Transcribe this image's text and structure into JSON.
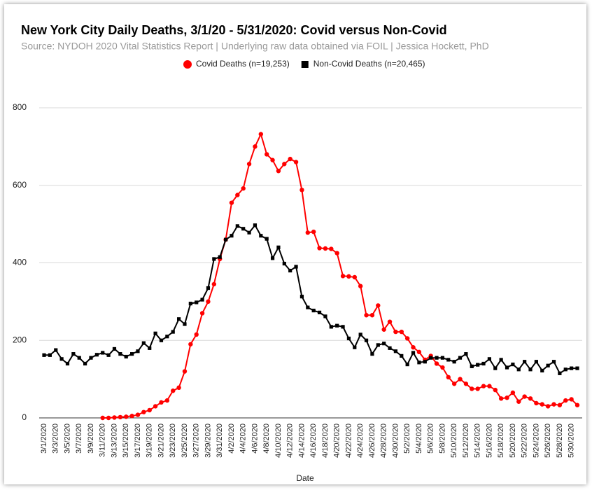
{
  "chart_data": {
    "type": "line",
    "title": "New York City Daily Deaths, 3/1/20 - 5/31/2020: Covid versus Non-Covid",
    "subtitle": "Source: NYDOH 2020 Vital Statistics Report | Underlying raw data obtained via FOIL | Jessica Hockett, PhD",
    "x_label": "Date",
    "categories": [
      "3/1/2020",
      null,
      "3/3/2020",
      null,
      "3/5/2020",
      null,
      "3/7/2020",
      null,
      "3/9/2020",
      null,
      "3/11/2020",
      null,
      "3/13/2020",
      null,
      "3/15/2020",
      null,
      "3/17/2020",
      null,
      "3/19/2020",
      null,
      "3/21/2020",
      null,
      "3/23/2020",
      null,
      "3/25/2020",
      null,
      "3/27/2020",
      null,
      "3/29/2020",
      null,
      "3/31/2020",
      null,
      "4/2/2020",
      null,
      "4/4/2020",
      null,
      "4/6/2020",
      null,
      "4/8/2020",
      null,
      "4/10/2020",
      null,
      "4/12/2020",
      null,
      "4/14/2020",
      null,
      "4/16/2020",
      null,
      "4/18/2020",
      null,
      "4/20/2020",
      null,
      "4/22/2020",
      null,
      "4/24/2020",
      null,
      "4/26/2020",
      null,
      "4/28/2020",
      null,
      "4/30/2020",
      null,
      "5/2/2020",
      null,
      "5/4/2020",
      null,
      "5/6/2020",
      null,
      "5/8/2020",
      null,
      "5/10/2020",
      null,
      "5/12/2020",
      null,
      "5/14/2020",
      null,
      "5/16/2020",
      null,
      "5/18/2020",
      null,
      "5/20/2020",
      null,
      "5/22/2020",
      null,
      "5/24/2020",
      null,
      "5/26/2020",
      null,
      "5/28/2020",
      null,
      "5/30/2020",
      null
    ],
    "series": [
      {
        "name": "Covid Deaths (n=19,253)",
        "color": "#ff0000",
        "marker": "circle",
        "values": [
          null,
          null,
          null,
          null,
          null,
          null,
          null,
          null,
          null,
          null,
          0,
          0,
          1,
          2,
          3,
          5,
          8,
          15,
          20,
          30,
          40,
          45,
          70,
          78,
          120,
          190,
          215,
          270,
          300,
          345,
          410,
          460,
          555,
          575,
          592,
          655,
          700,
          732,
          680,
          665,
          637,
          655,
          668,
          660,
          588,
          478,
          480,
          438,
          437,
          436,
          425,
          366,
          365,
          363,
          340,
          265,
          265,
          290,
          228,
          248,
          222,
          222,
          205,
          182,
          170,
          150,
          160,
          140,
          130,
          105,
          88,
          100,
          88,
          75,
          75,
          82,
          82,
          72,
          50,
          52,
          65,
          42,
          55,
          50,
          38,
          35,
          30,
          35,
          33,
          45,
          48,
          33
        ]
      },
      {
        "name": "Non-Covid Deaths (n=20,465)",
        "color": "#000000",
        "marker": "square",
        "values": [
          162,
          162,
          175,
          152,
          140,
          165,
          155,
          140,
          155,
          163,
          168,
          162,
          178,
          165,
          158,
          165,
          172,
          193,
          180,
          218,
          200,
          210,
          222,
          255,
          242,
          295,
          298,
          305,
          335,
          410,
          415,
          460,
          470,
          495,
          488,
          478,
          497,
          470,
          462,
          412,
          440,
          398,
          380,
          390,
          313,
          285,
          277,
          272,
          262,
          235,
          238,
          235,
          205,
          182,
          215,
          200,
          165,
          188,
          192,
          180,
          172,
          160,
          138,
          168,
          143,
          145,
          155,
          155,
          155,
          150,
          145,
          155,
          165,
          133,
          137,
          140,
          152,
          128,
          150,
          130,
          138,
          125,
          145,
          125,
          145,
          122,
          135,
          145,
          115,
          125,
          128,
          128
        ]
      }
    ],
    "ylim": [
      0,
      800
    ],
    "yticks": [
      0,
      200,
      400,
      600,
      800
    ],
    "grid": true,
    "legend": "top"
  }
}
